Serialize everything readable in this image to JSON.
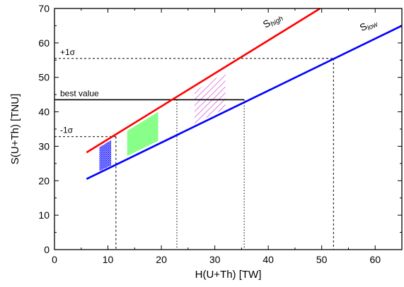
{
  "chart_data": {
    "type": "line",
    "xlabel": "H(U+Th) [TW]",
    "ylabel": "S(U+Th) [TNU]",
    "xlim": [
      0,
      65
    ],
    "ylim": [
      0,
      70
    ],
    "x_ticks": [
      0,
      10,
      20,
      30,
      40,
      50,
      60
    ],
    "y_ticks": [
      0,
      10,
      20,
      30,
      40,
      50,
      60,
      70
    ],
    "grid": false,
    "series": [
      {
        "name_main": "S",
        "name_sub": "high",
        "color": "#ff0000",
        "x": [
          6.0,
          49.7
        ],
        "y": [
          28.2,
          70.0
        ]
      },
      {
        "name_main": "S",
        "name_sub": "low",
        "color": "#0000ff",
        "x": [
          6.0,
          65.0
        ],
        "y": [
          20.5,
          65.0
        ]
      }
    ],
    "reference_lines": [
      {
        "label": "best value",
        "y": 43.5,
        "x_end": 35.5,
        "style": "solid"
      },
      {
        "label": "+1σ",
        "y": 55.5,
        "x_end": 52.2,
        "style": "dashed"
      },
      {
        "label": "-1σ",
        "y": 32.8,
        "x_end": 11.5,
        "style": "dashed"
      }
    ],
    "vertical_markers": [
      {
        "x": 11.5,
        "y_top": 32.8,
        "style": "dashed"
      },
      {
        "x": 22.9,
        "y_top": 43.5,
        "style": "dotted"
      },
      {
        "x": 35.5,
        "y_top": 43.5,
        "style": "dotted"
      },
      {
        "x": 52.2,
        "y_top": 55.5,
        "style": "dashed"
      }
    ],
    "shaded_regions": [
      {
        "fill": "blue-crosshatch",
        "color": "#1a1aff",
        "x": [
          8.4,
          10.6
        ],
        "y": [
          22.8,
          31.8
        ]
      },
      {
        "fill": "solid",
        "color": "#88ff88",
        "x": [
          13.6,
          19.4
        ],
        "y": [
          27.2,
          40.0
        ]
      },
      {
        "fill": "diagonal-hatch",
        "color": "#cc33cc",
        "x": [
          26.2,
          32.0
        ],
        "y": [
          36.6,
          51.5
        ]
      }
    ]
  }
}
